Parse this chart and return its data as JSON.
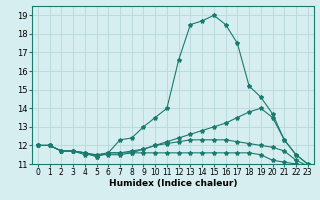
{
  "xlabel": "Humidex (Indice chaleur)",
  "ylabel": "",
  "bg_color": "#d6eef0",
  "grid_color": "#b8d8dc",
  "line_color": "#1a7a6e",
  "xlim": [
    -0.5,
    23.5
  ],
  "ylim": [
    11,
    19.5
  ],
  "xticks": [
    0,
    1,
    2,
    3,
    4,
    5,
    6,
    7,
    8,
    9,
    10,
    11,
    12,
    13,
    14,
    15,
    16,
    17,
    18,
    19,
    20,
    21,
    22,
    23
  ],
  "yticks": [
    11,
    12,
    13,
    14,
    15,
    16,
    17,
    18,
    19
  ],
  "lines": [
    {
      "x": [
        0,
        1,
        2,
        3,
        4,
        5,
        6,
        7,
        8,
        9,
        10,
        11,
        12,
        13,
        14,
        15,
        16,
        17,
        18,
        19,
        20,
        21,
        22,
        23
      ],
      "y": [
        12.0,
        12.0,
        11.7,
        11.7,
        11.6,
        11.5,
        11.6,
        12.3,
        12.4,
        13.0,
        13.5,
        14.0,
        16.6,
        18.5,
        18.7,
        19.0,
        18.5,
        17.5,
        15.2,
        14.6,
        13.7,
        12.3,
        11.5,
        11.0
      ]
    },
    {
      "x": [
        0,
        1,
        2,
        3,
        4,
        5,
        6,
        7,
        8,
        9,
        10,
        11,
        12,
        13,
        14,
        15,
        16,
        17,
        18,
        19,
        20,
        21,
        22,
        23
      ],
      "y": [
        12.0,
        12.0,
        11.7,
        11.7,
        11.6,
        11.4,
        11.6,
        11.6,
        11.7,
        11.8,
        12.0,
        12.2,
        12.4,
        12.6,
        12.8,
        13.0,
        13.2,
        13.5,
        13.8,
        14.0,
        13.5,
        12.3,
        11.5,
        11.0
      ]
    },
    {
      "x": [
        0,
        1,
        2,
        3,
        4,
        5,
        6,
        7,
        8,
        9,
        10,
        11,
        12,
        13,
        14,
        15,
        16,
        17,
        18,
        19,
        20,
        21,
        22,
        23
      ],
      "y": [
        12.0,
        12.0,
        11.7,
        11.7,
        11.6,
        11.4,
        11.6,
        11.6,
        11.6,
        11.6,
        11.6,
        11.6,
        11.6,
        11.6,
        11.6,
        11.6,
        11.6,
        11.6,
        11.6,
        11.5,
        11.2,
        11.1,
        11.0,
        10.9
      ]
    },
    {
      "x": [
        0,
        1,
        2,
        3,
        4,
        5,
        6,
        7,
        8,
        9,
        10,
        11,
        12,
        13,
        14,
        15,
        16,
        17,
        18,
        19,
        20,
        21,
        22,
        23
      ],
      "y": [
        12.0,
        12.0,
        11.7,
        11.7,
        11.5,
        11.5,
        11.5,
        11.5,
        11.6,
        11.8,
        12.0,
        12.1,
        12.2,
        12.3,
        12.3,
        12.3,
        12.3,
        12.2,
        12.1,
        12.0,
        11.9,
        11.7,
        11.2,
        10.9
      ]
    }
  ]
}
